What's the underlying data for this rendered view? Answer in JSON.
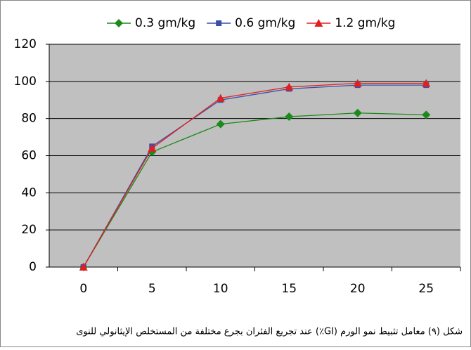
{
  "chart_data": {
    "type": "line",
    "categories": [
      "0",
      "5",
      "10",
      "15",
      "20",
      "25"
    ],
    "series": [
      {
        "name": "0.3 gm/kg",
        "color": "#1a8a1a",
        "marker": "diamond",
        "values": [
          0,
          62,
          77,
          81,
          83,
          82
        ]
      },
      {
        "name": "0.6 gm/kg",
        "color": "#3a4fa8",
        "marker": "square",
        "values": [
          0,
          65,
          90,
          96,
          98,
          98
        ]
      },
      {
        "name": "1.2 gm/kg",
        "color": "#e02020",
        "marker": "triangle",
        "values": [
          0,
          64,
          91,
          97,
          99,
          99
        ]
      }
    ],
    "ylim": [
      0,
      120
    ],
    "yticks": [
      0,
      20,
      40,
      60,
      80,
      100,
      120
    ],
    "grid": true,
    "legend": "top",
    "caption": "شكل (٩) معامل تثبيط نمو الورم (GI٪) عند تجريع الفئران بجرع مختلفة من المستخلص الإيثانولي للنوى"
  }
}
